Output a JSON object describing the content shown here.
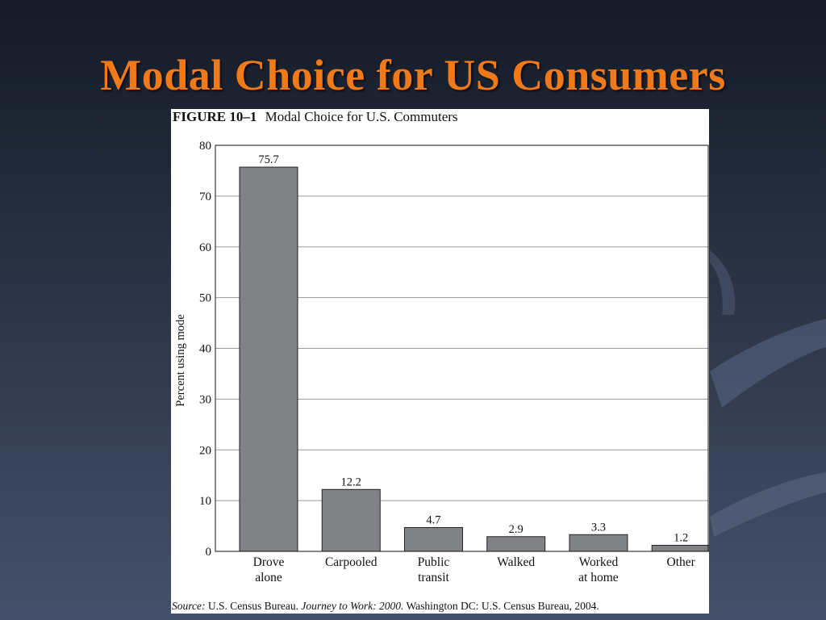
{
  "slide": {
    "title": "Modal Choice for US Consumers"
  },
  "figure": {
    "number": "FIGURE 10–1",
    "caption": "Modal Choice for U.S. Commuters",
    "source": {
      "label": "Source:",
      "org": "U.S. Census Bureau.",
      "publication": "Journey to Work: 2000.",
      "rest": "Washington DC: U.S. Census Bureau, 2004."
    }
  },
  "chart_data": {
    "type": "bar",
    "title": "Modal Choice for U.S. Commuters",
    "xlabel": "",
    "ylabel": "Percent using mode",
    "ylim": [
      0,
      80
    ],
    "yticks": [
      0,
      10,
      20,
      30,
      40,
      50,
      60,
      70,
      80
    ],
    "grid": true,
    "categories": [
      [
        "Drove",
        "alone"
      ],
      [
        "Carpooled"
      ],
      [
        "Public",
        "transit"
      ],
      [
        "Walked"
      ],
      [
        "Worked",
        "at home"
      ],
      [
        "Other"
      ]
    ],
    "values": [
      75.7,
      12.2,
      4.7,
      2.9,
      3.3,
      1.2
    ],
    "data_labels": [
      "75.7",
      "12.2",
      "4.7",
      "2.9",
      "3.3",
      "1.2"
    ],
    "bar_color": "#808285"
  },
  "theme": {
    "title_color": "#f07a1a",
    "background": "#2a3345"
  }
}
